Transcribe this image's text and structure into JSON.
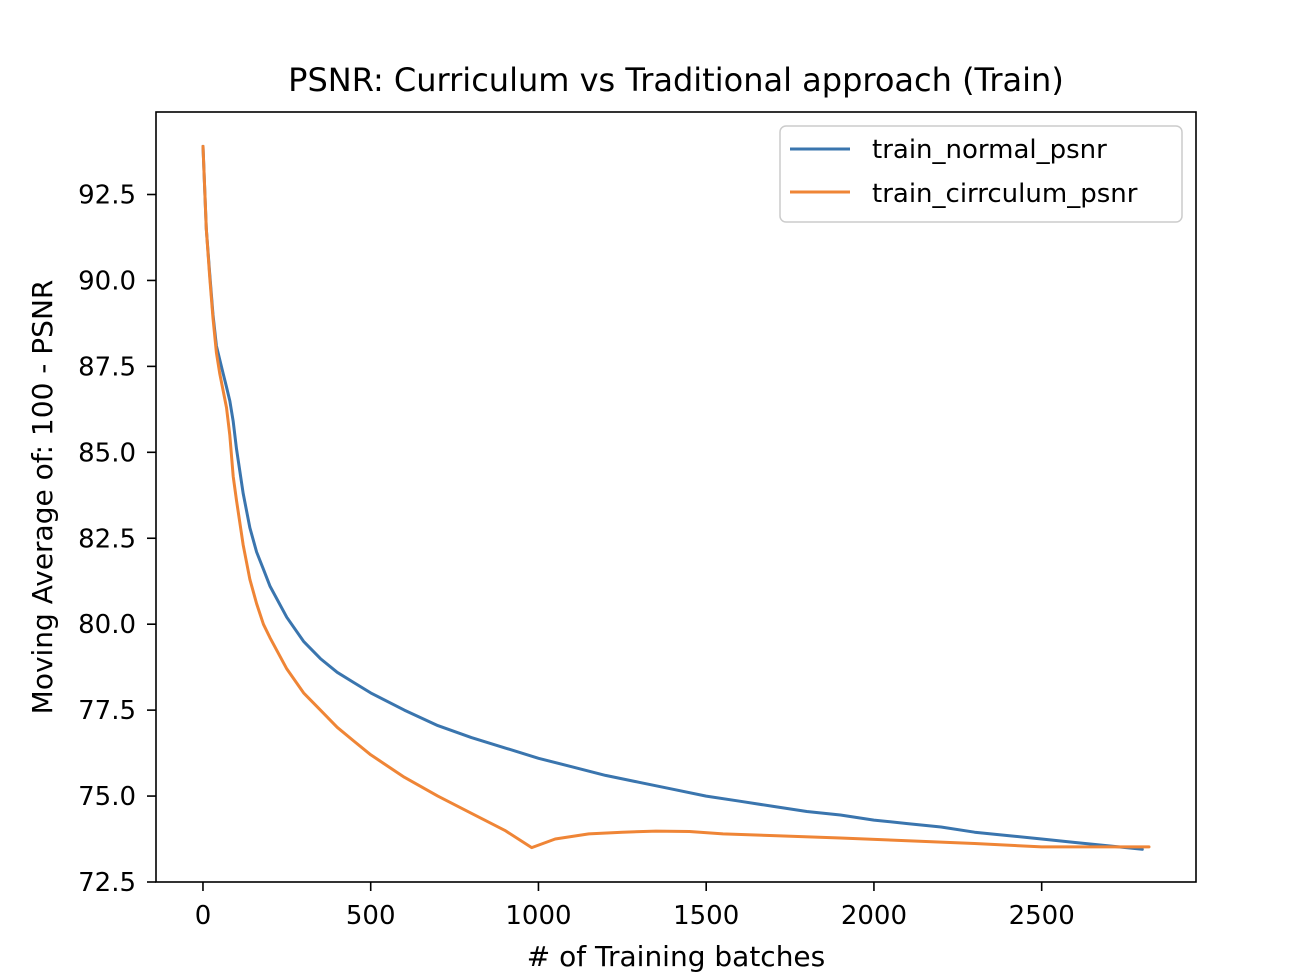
{
  "chart_data": {
    "type": "line",
    "title": "PSNR: Curriculum vs Traditional approach (Train)",
    "xlabel": "# of Training batches",
    "ylabel": "Moving Average of: 100 - PSNR",
    "xlim": [
      -140,
      2960
    ],
    "ylim": [
      72.5,
      94.9
    ],
    "xticks": [
      0,
      500,
      1000,
      1500,
      2000,
      2500
    ],
    "yticks": [
      72.5,
      75.0,
      77.5,
      80.0,
      82.5,
      85.0,
      87.5,
      90.0,
      92.5
    ],
    "grid": false,
    "legend_position": "top-right",
    "series": [
      {
        "name": "train_normal_psnr",
        "color": "#3a75ae",
        "x": [
          0,
          10,
          20,
          30,
          40,
          50,
          60,
          70,
          80,
          90,
          100,
          120,
          140,
          160,
          180,
          200,
          250,
          300,
          350,
          400,
          450,
          500,
          600,
          700,
          800,
          900,
          1000,
          1100,
          1200,
          1300,
          1400,
          1500,
          1600,
          1700,
          1800,
          1900,
          2000,
          2100,
          2200,
          2300,
          2400,
          2500,
          2600,
          2700,
          2800
        ],
        "y": [
          93.9,
          91.5,
          90.2,
          89.0,
          88.1,
          87.7,
          87.3,
          86.9,
          86.5,
          85.9,
          85.1,
          83.8,
          82.8,
          82.1,
          81.6,
          81.1,
          80.2,
          79.5,
          79.0,
          78.6,
          78.3,
          78.0,
          77.5,
          77.05,
          76.7,
          76.4,
          76.1,
          75.85,
          75.6,
          75.4,
          75.2,
          75.0,
          74.85,
          74.7,
          74.55,
          74.45,
          74.3,
          74.2,
          74.1,
          73.95,
          73.85,
          73.75,
          73.65,
          73.55,
          73.45
        ]
      },
      {
        "name": "train_cirrculum_psnr",
        "color": "#ef8536",
        "x": [
          0,
          10,
          20,
          30,
          40,
          50,
          60,
          70,
          80,
          90,
          100,
          120,
          140,
          160,
          180,
          200,
          250,
          300,
          350,
          400,
          450,
          500,
          600,
          700,
          800,
          900,
          980,
          1050,
          1150,
          1250,
          1350,
          1450,
          1550,
          1700,
          1900,
          2100,
          2300,
          2500,
          2700,
          2820
        ],
        "y": [
          93.9,
          91.5,
          90.1,
          88.9,
          87.9,
          87.3,
          86.8,
          86.3,
          85.5,
          84.3,
          83.6,
          82.3,
          81.3,
          80.6,
          80.0,
          79.6,
          78.7,
          78.0,
          77.5,
          77.0,
          76.6,
          76.2,
          75.55,
          75.0,
          74.5,
          74.0,
          73.5,
          73.75,
          73.9,
          73.95,
          73.98,
          73.97,
          73.9,
          73.85,
          73.78,
          73.7,
          73.62,
          73.52,
          73.52,
          73.52
        ]
      }
    ]
  }
}
